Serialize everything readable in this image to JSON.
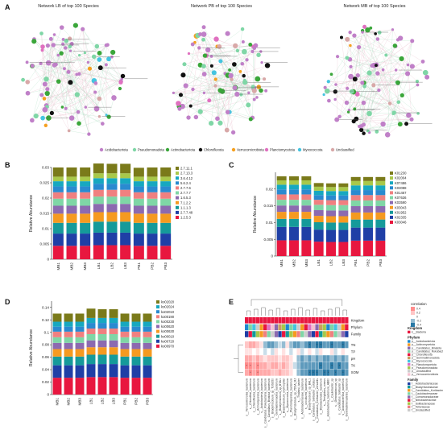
{
  "panel_labels": {
    "a": "A",
    "b": "B",
    "c": "C",
    "d": "D",
    "e": "E"
  },
  "networks": [
    {
      "title": "Network  LB  of  top 100 Species"
    },
    {
      "title": "Network  PB  of  top 100 Species"
    },
    {
      "title": "Network  MB  of  top 100 Species"
    }
  ],
  "network_legend": [
    {
      "name": "Acidobacteriota",
      "color": "#c080c8"
    },
    {
      "name": "Pseudomonadota",
      "color": "#7fd6a6"
    },
    {
      "name": "Actinobacteriota",
      "color": "#3aa63a"
    },
    {
      "name": "Chloroflexota",
      "color": "#111111"
    },
    {
      "name": "Verrucomicrobiota",
      "color": "#f5a020"
    },
    {
      "name": "Planctomycetota",
      "color": "#e070c0"
    },
    {
      "name": "Myxococcota",
      "color": "#44c4e0"
    },
    {
      "name": "Unclassified",
      "color": "#d8a8a8"
    }
  ],
  "chart_data": [
    {
      "type": "bar",
      "stacked": true,
      "panel": "B",
      "ylabel": "Relative Abundance",
      "ylim": [
        0,
        0.03
      ],
      "yticks": [
        "0",
        "0.005",
        "0.01",
        "0.015",
        "0.02",
        "0.025",
        "0.03"
      ],
      "categories": [
        "MB1",
        "MB2",
        "MB3",
        "LB1",
        "LB2",
        "LB3",
        "PB1",
        "PB2",
        "PB3"
      ],
      "series": [
        {
          "name": "1.2.5.3",
          "color": "#e8173f",
          "values": [
            0.0044,
            0.0044,
            0.0044,
            0.0046,
            0.0046,
            0.0046,
            0.0044,
            0.0044,
            0.0044
          ]
        },
        {
          "name": "2.7.7.48",
          "color": "#1f3fa6",
          "values": [
            0.004,
            0.004,
            0.004,
            0.0041,
            0.0041,
            0.0041,
            0.004,
            0.004,
            0.004
          ]
        },
        {
          "name": "1.1.1.3",
          "color": "#159a9a",
          "values": [
            0.0035,
            0.0035,
            0.0035,
            0.0036,
            0.0036,
            0.0036,
            0.0035,
            0.0035,
            0.0035
          ]
        },
        {
          "name": "7.1.2.2",
          "color": "#f59a20",
          "values": [
            0.003,
            0.003,
            0.003,
            0.0031,
            0.0031,
            0.0031,
            0.003,
            0.003,
            0.003
          ]
        },
        {
          "name": "1.6.5.3",
          "color": "#8c6ab0",
          "values": [
            0.0026,
            0.0026,
            0.0026,
            0.0027,
            0.0027,
            0.0027,
            0.0026,
            0.0026,
            0.0026
          ]
        },
        {
          "name": "2.7.7.7",
          "color": "#7fd6a6",
          "values": [
            0.0023,
            0.0023,
            0.0023,
            0.0024,
            0.0024,
            0.0024,
            0.0023,
            0.0023,
            0.0023
          ]
        },
        {
          "name": "2.7.7.6",
          "color": "#f08080",
          "values": [
            0.0021,
            0.0021,
            0.0021,
            0.0022,
            0.0022,
            0.0022,
            0.0021,
            0.0021,
            0.0021
          ]
        },
        {
          "name": "5.6.2.4",
          "color": "#2a8ad0",
          "values": [
            0.0019,
            0.0019,
            0.0019,
            0.002,
            0.002,
            0.002,
            0.0019,
            0.0019,
            0.0019
          ]
        },
        {
          "name": "3.6.4.12",
          "color": "#17a8c0",
          "values": [
            0.0017,
            0.0017,
            0.0017,
            0.0018,
            0.0018,
            0.0018,
            0.0017,
            0.0017,
            0.0017
          ]
        },
        {
          "name": "2.7.13.3",
          "color": "#a8c84a",
          "values": [
            0.0015,
            0.0015,
            0.0015,
            0.0016,
            0.0016,
            0.0016,
            0.0015,
            0.0015,
            0.0015
          ]
        },
        {
          "name": "2.7.11.1",
          "color": "#7a7a1a",
          "values": [
            0.003,
            0.003,
            0.003,
            0.0032,
            0.0031,
            0.0031,
            0.0029,
            0.003,
            0.003
          ]
        }
      ]
    },
    {
      "type": "bar",
      "stacked": true,
      "panel": "C",
      "ylabel": "Relative Abundance",
      "ylim": [
        0,
        0.025
      ],
      "yticks": [
        "0",
        "0.005",
        "0.01",
        "0.015",
        "0.02"
      ],
      "categories": [
        "MB1",
        "MB2",
        "MB3",
        "LB1",
        "LB2",
        "LB3",
        "PB1",
        "PB2",
        "PB3"
      ],
      "series": [
        {
          "name": "K03046",
          "color": "#e8173f",
          "values": [
            0.0047,
            0.0047,
            0.0047,
            0.0043,
            0.0042,
            0.0042,
            0.0046,
            0.0046,
            0.0046
          ]
        },
        {
          "name": "K02335",
          "color": "#1f3fa6",
          "values": [
            0.004,
            0.004,
            0.004,
            0.0036,
            0.0036,
            0.0036,
            0.0039,
            0.0039,
            0.0039
          ]
        },
        {
          "name": "K01952",
          "color": "#159a9a",
          "values": [
            0.0024,
            0.0024,
            0.0024,
            0.0022,
            0.0022,
            0.0022,
            0.0024,
            0.0024,
            0.0024
          ]
        },
        {
          "name": "K03043",
          "color": "#f59a20",
          "values": [
            0.0021,
            0.0021,
            0.0021,
            0.0019,
            0.0019,
            0.0019,
            0.0021,
            0.0021,
            0.0021
          ]
        },
        {
          "name": "K03590",
          "color": "#8c6ab0",
          "values": [
            0.0019,
            0.0019,
            0.0019,
            0.0017,
            0.0017,
            0.0017,
            0.0019,
            0.0019,
            0.0019
          ]
        },
        {
          "name": "K07636",
          "color": "#7fd6a6",
          "values": [
            0.0017,
            0.0017,
            0.0017,
            0.0016,
            0.0016,
            0.0016,
            0.0017,
            0.0017,
            0.0017
          ]
        },
        {
          "name": "K01467",
          "color": "#f08080",
          "values": [
            0.0016,
            0.0016,
            0.0016,
            0.0015,
            0.0015,
            0.0015,
            0.0016,
            0.0016,
            0.0016
          ]
        },
        {
          "name": "K03088",
          "color": "#2a8ad0",
          "values": [
            0.0015,
            0.0015,
            0.0015,
            0.0014,
            0.0014,
            0.0014,
            0.0015,
            0.0015,
            0.0015
          ]
        },
        {
          "name": "K07486",
          "color": "#17a8c0",
          "values": [
            0.0014,
            0.0014,
            0.0014,
            0.0013,
            0.0013,
            0.0013,
            0.0014,
            0.0014,
            0.0014
          ]
        },
        {
          "name": "K02004",
          "color": "#a8c84a",
          "values": [
            0.0013,
            0.0013,
            0.0013,
            0.0012,
            0.0012,
            0.0012,
            0.0013,
            0.0013,
            0.0013
          ]
        },
        {
          "name": "K01230",
          "color": "#7a7a1a",
          "values": [
            0.0012,
            0.0012,
            0.0012,
            0.0011,
            0.0011,
            0.0011,
            0.0012,
            0.0012,
            0.0012
          ]
        }
      ]
    },
    {
      "type": "bar",
      "stacked": true,
      "panel": "D",
      "ylabel": "Relative Abundance",
      "ylim": [
        0,
        0.15
      ],
      "yticks": [
        "0",
        "0.02",
        "0.04",
        "0.06",
        "0.08",
        "0.1",
        "0.12",
        "0.14"
      ],
      "categories": [
        "MB1",
        "MB2",
        "MB3",
        "LB1",
        "LB2",
        "LB3",
        "PB1",
        "PB2",
        "PB3"
      ],
      "series": [
        {
          "name": "ko00970",
          "color": "#e8173f",
          "values": [
            0.027,
            0.027,
            0.027,
            0.028,
            0.028,
            0.028,
            0.027,
            0.027,
            0.027
          ]
        },
        {
          "name": "ko00720",
          "color": "#1f3fa6",
          "values": [
            0.02,
            0.02,
            0.02,
            0.021,
            0.021,
            0.021,
            0.02,
            0.02,
            0.02
          ]
        },
        {
          "name": "ko00010",
          "color": "#159a9a",
          "values": [
            0.014,
            0.014,
            0.014,
            0.015,
            0.015,
            0.015,
            0.014,
            0.014,
            0.014
          ]
        },
        {
          "name": "ko00630",
          "color": "#f59a20",
          "values": [
            0.012,
            0.012,
            0.012,
            0.012,
            0.012,
            0.012,
            0.012,
            0.012,
            0.012
          ]
        },
        {
          "name": "ko00620",
          "color": "#8c6ab0",
          "values": [
            0.01,
            0.01,
            0.01,
            0.011,
            0.011,
            0.011,
            0.01,
            0.01,
            0.01
          ]
        },
        {
          "name": "ko00230",
          "color": "#7fd6a6",
          "values": [
            0.009,
            0.009,
            0.009,
            0.01,
            0.01,
            0.01,
            0.009,
            0.009,
            0.009
          ]
        },
        {
          "name": "ko00190",
          "color": "#f08080",
          "values": [
            0.009,
            0.009,
            0.009,
            0.009,
            0.009,
            0.009,
            0.009,
            0.009,
            0.009
          ]
        },
        {
          "name": "ko02010",
          "color": "#2a8ad0",
          "values": [
            0.008,
            0.008,
            0.008,
            0.009,
            0.009,
            0.009,
            0.008,
            0.008,
            0.008
          ]
        },
        {
          "name": "ko02024",
          "color": "#17a8c0",
          "values": [
            0.008,
            0.008,
            0.008,
            0.008,
            0.008,
            0.008,
            0.008,
            0.008,
            0.008
          ]
        },
        {
          "name": "ko02020",
          "color": "#7a7a1a",
          "values": [
            0.013,
            0.013,
            0.013,
            0.015,
            0.014,
            0.014,
            0.013,
            0.013,
            0.013
          ]
        }
      ]
    },
    {
      "type": "heatmap",
      "panel": "E",
      "rows": [
        "TN",
        "TP",
        "pH",
        "TK",
        "SOM"
      ],
      "colorbar_title": "correlation",
      "colorbar_ticks": [
        "0.4",
        "0.2",
        "0",
        "-0.2",
        "-0.4"
      ],
      "annotation_rows": [
        "Kingdom",
        "Phylum",
        "Family"
      ],
      "kingdom_legend_title": "Kingdom",
      "kingdom_legend": [
        {
          "name": "k__Bacteria",
          "color": "#e8173f"
        }
      ],
      "phylum_legend_title": "Phylum",
      "phylum_legend": [
        {
          "name": "p__Acidobacteriota",
          "color": "#1f8ad0"
        },
        {
          "name": "p__Actinomycetota",
          "color": "#f59a20"
        },
        {
          "name": "p__Candidatus_Binatota",
          "color": "#8c6ab0"
        },
        {
          "name": "p__Candidatus_Rokubacteria",
          "color": "#7fd6a6"
        },
        {
          "name": "p__Chloroflexota",
          "color": "#e8173f"
        },
        {
          "name": "p__Gemmatimonadota",
          "color": "#c8a060"
        },
        {
          "name": "p__Myxococcota",
          "color": "#44c4e0"
        },
        {
          "name": "p__Planctomycetota",
          "color": "#e070c0"
        },
        {
          "name": "p__Pseudomonadota",
          "color": "#a8c84a"
        },
        {
          "name": "p__Unclassified",
          "color": "#cccccc"
        },
        {
          "name": "p__Verrucomicrobiota",
          "color": "#f5c0d0"
        }
      ],
      "family_legend_title": "Family",
      "family_legend": [
        {
          "name": "f__Acidobacteriaceae",
          "color": "#1f3fa6"
        },
        {
          "name": "f__Bradyrhizobiaceae",
          "color": "#159a9a"
        },
        {
          "name": "f__Candidatus_Koribacteraceae",
          "color": "#f59a20"
        },
        {
          "name": "f__Caulobacteraceae",
          "color": "#7fd6a6"
        },
        {
          "name": "f__Comamonadaceae",
          "color": "#8c6ab0"
        },
        {
          "name": "f__Nitrobacteraceae",
          "color": "#e8173f"
        },
        {
          "name": "f__Solibacteraceae",
          "color": "#a8c84a"
        },
        {
          "name": "f__Telluriaceae",
          "color": "#f08080"
        },
        {
          "name": "f__Unclassified",
          "color": "#cccccc"
        }
      ],
      "columns": [
        "s__Verrucomicrobia_bacterium",
        "s__Chloroflexi_bacterium",
        "s__Chloroflexota_bacterium",
        "s__Actinomycetota_bacterium",
        "s__Acidobacteria_bacterium",
        "s__Candidatus_Rokubacteria_bacterium",
        "s__Candidatus_Binatota_bacterium",
        "s__Bradyrhizobium_sp_TUSS50",
        "s__Gemmatimonadota_bacterium",
        "s__Bradyrhizobium_sp_BTAi1",
        "s__Bradyrhizobium_erythrophlei",
        "s__Myxococcota_bacterium",
        "s__Planctomycetota_bacterium",
        "s__Bradyrhizobium_sp_7DSA_MJ",
        "s__Thalassi_bacter",
        "s__Acidobacteriaceae_bacterium",
        "s__uncultured_bacterium",
        "s__Bradyrhizobium_sp_BAL1",
        "s__Candidatus_Solibacter_usitatus",
        "s__Candidatus_Koribacter_versatilis",
        "s__Bryobacterales_bacterium",
        "s__Terriglobus_roseus",
        "s__Acidobacteria_bacterium_AB60",
        "s__Caulobacter_sp",
        "s__Gemmatimonas_sp",
        "s__Candidatus_Solibacter_sp",
        "s__Acidobacteriota_bacterium",
        "s__Gemmatimonadetes_bacterium"
      ],
      "values": [
        [
          0.2,
          0.3,
          0.3,
          0.2,
          0.1,
          -0.2,
          -0.3,
          -0.3,
          -0.2,
          -0.1,
          -0.2,
          0.1,
          -0.2,
          -0.3,
          -0.3,
          -0.2,
          -0.3,
          -0.4,
          -0.3,
          -0.4,
          -0.4,
          -0.3,
          -0.3,
          -0.4,
          -0.3,
          -0.3,
          -0.4,
          -0.3
        ],
        [
          0.1,
          0.1,
          0.0,
          0.1,
          0.0,
          -0.1,
          0.0,
          -0.1,
          0.1,
          0.0,
          0.1,
          0.0,
          -0.1,
          0.0,
          0.1,
          -0.1,
          0.0,
          0.1,
          0.0,
          -0.1,
          0.1,
          0.0,
          0.0,
          0.1,
          -0.1,
          0.0,
          0.1,
          0.0
        ],
        [
          0.3,
          0.3,
          0.2,
          0.3,
          0.2,
          0.1,
          0.2,
          0.2,
          0.2,
          0.1,
          0.2,
          0.2,
          0.1,
          0.0,
          -0.2,
          -0.3,
          -0.2,
          -0.3,
          -0.2,
          -0.3,
          -0.2,
          -0.3,
          -0.3,
          -0.2,
          -0.3,
          -0.2,
          -0.3,
          -0.2
        ],
        [
          0.4,
          0.4,
          0.3,
          0.4,
          0.3,
          0.3,
          0.2,
          0.3,
          0.3,
          0.2,
          0.3,
          0.2,
          0.1,
          -0.1,
          -0.2,
          -0.3,
          -0.3,
          -0.3,
          -0.3,
          -0.3,
          -0.4,
          -0.3,
          -0.3,
          -0.4,
          -0.3,
          -0.4,
          -0.3,
          -0.3
        ],
        [
          0.3,
          0.4,
          0.3,
          0.4,
          0.3,
          0.3,
          0.3,
          0.2,
          0.2,
          0.3,
          0.2,
          0.2,
          0.1,
          0.0,
          -0.2,
          -0.3,
          -0.3,
          -0.4,
          -0.4,
          -0.4,
          -0.3,
          -0.4,
          -0.4,
          -0.3,
          -0.4,
          -0.3,
          -0.4,
          -0.3
        ]
      ]
    }
  ]
}
